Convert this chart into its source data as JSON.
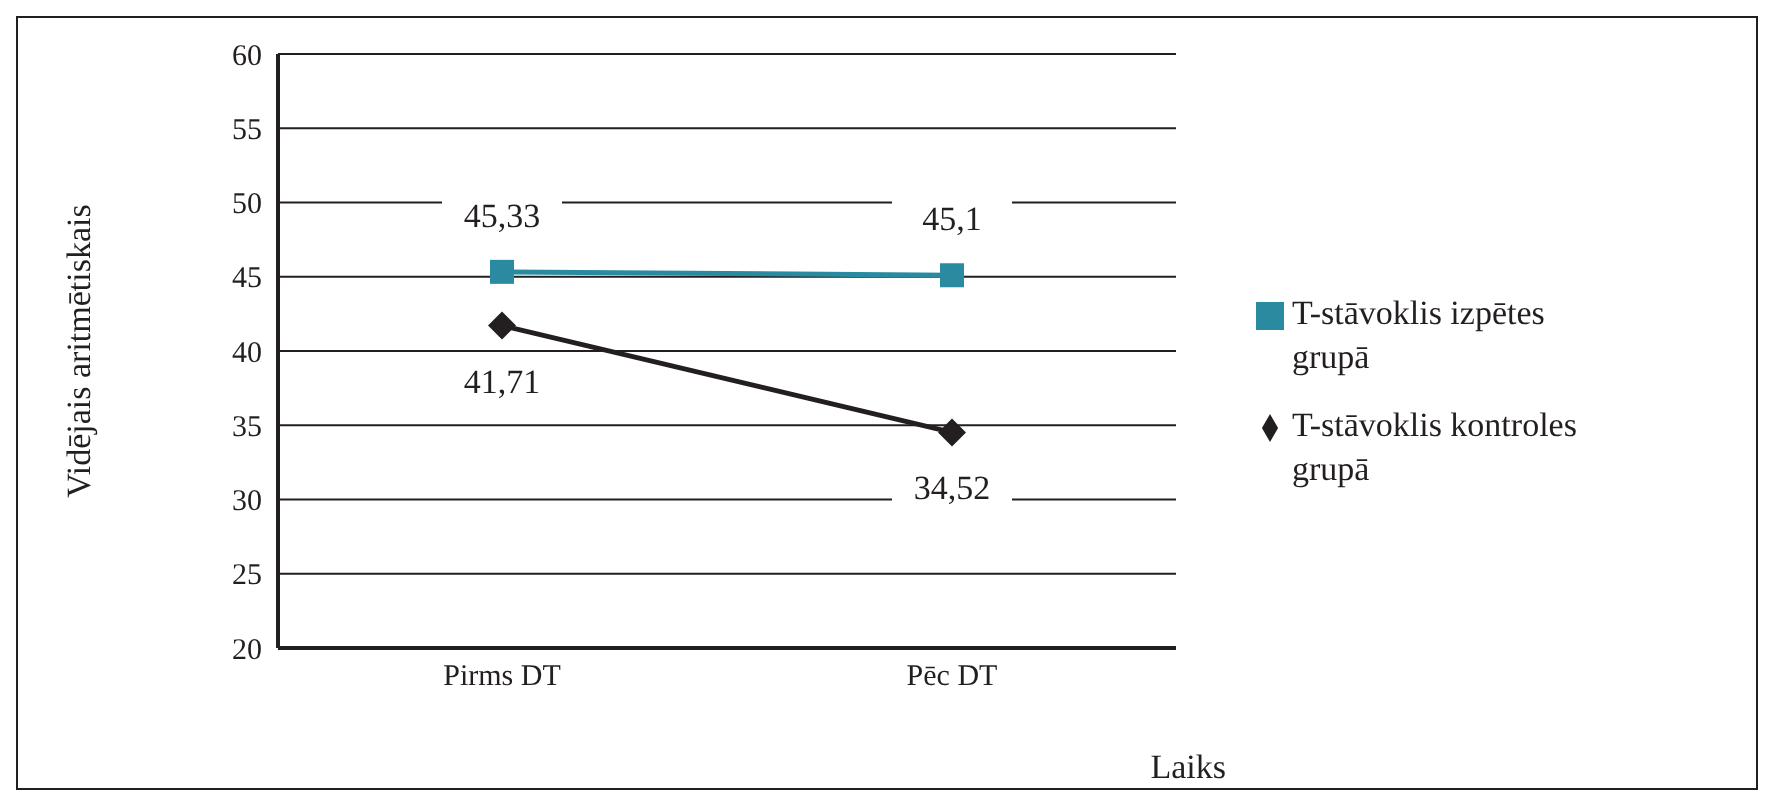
{
  "chart_data": {
    "type": "line",
    "categories": [
      "Pirms DT",
      "Pēc DT"
    ],
    "series": [
      {
        "name": "T-stāvoklis izpētes grupā",
        "color": "#2a8ba0",
        "marker": "square",
        "values": [
          45.33,
          45.1
        ]
      },
      {
        "name": "T-stāvoklis kontroles grupā",
        "color": "#231f20",
        "marker": "diamond",
        "values": [
          41.71,
          34.52
        ]
      }
    ],
    "value_labels": [
      [
        "45,33",
        "45,1"
      ],
      [
        "41,71",
        "34,52"
      ]
    ],
    "xlabel": "Laiks",
    "ylabel": "Vidējais aritmētiskais",
    "ylim": [
      20,
      60
    ],
    "yticks": [
      20,
      25,
      30,
      35,
      40,
      45,
      50,
      55,
      60
    ],
    "grid": "y",
    "legend": "right"
  }
}
